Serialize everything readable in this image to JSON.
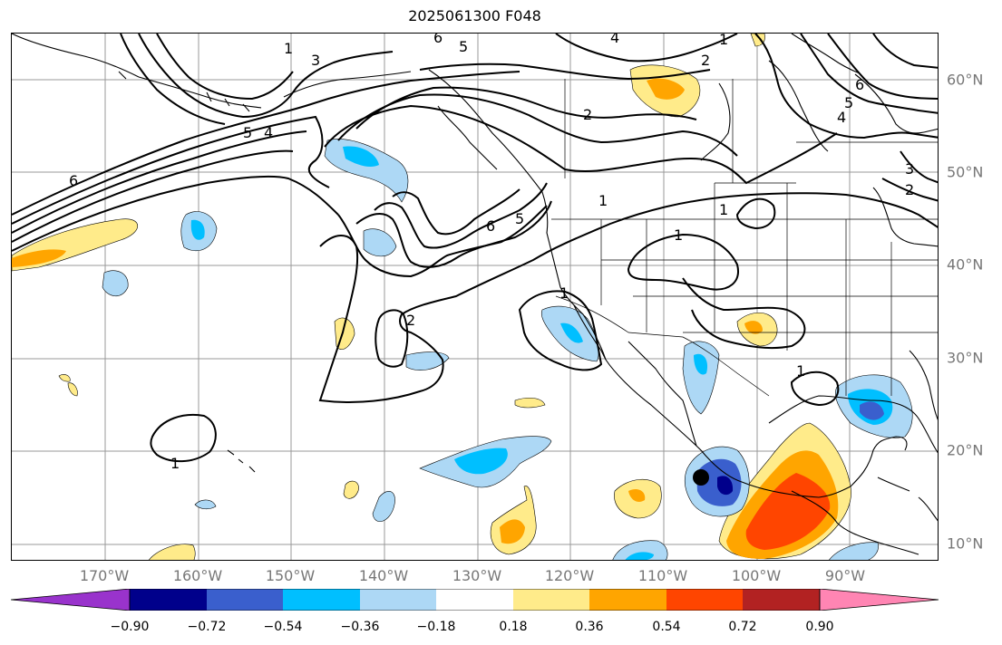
{
  "title": "2025061300 F048",
  "lon_labels": [
    "170°W",
    "160°W",
    "150°W",
    "140°W",
    "130°W",
    "120°W",
    "110°W",
    "100°W",
    "90°W"
  ],
  "lat_labels": [
    "60°N",
    "50°N",
    "40°N",
    "30°N",
    "20°N",
    "10°N"
  ],
  "colorbar": {
    "tick_labels": [
      "−0.90",
      "−0.72",
      "−0.54",
      "−0.36",
      "−0.18",
      "0.18",
      "0.36",
      "0.54",
      "0.72",
      "0.90"
    ],
    "colors": [
      "#9933cc",
      "#00008b",
      "#3a5fcd",
      "#00bfff",
      "#add8f5",
      "#ffffff",
      "#ffeb8a",
      "#ffa500",
      "#ff4500",
      "#b22222",
      "#ff85b3"
    ],
    "extend": "both"
  },
  "contour_labels": [
    "1",
    "2",
    "3",
    "4",
    "5",
    "6"
  ],
  "fill_colors": {
    "light_blue": "#add8f5",
    "medium_blue": "#00bfff",
    "royal_blue": "#3a5fcd",
    "navy": "#00008b",
    "light_yellow": "#ffeb8a",
    "orange": "#ffa500",
    "red_orange": "#ff4500"
  },
  "marker": "black-dot"
}
